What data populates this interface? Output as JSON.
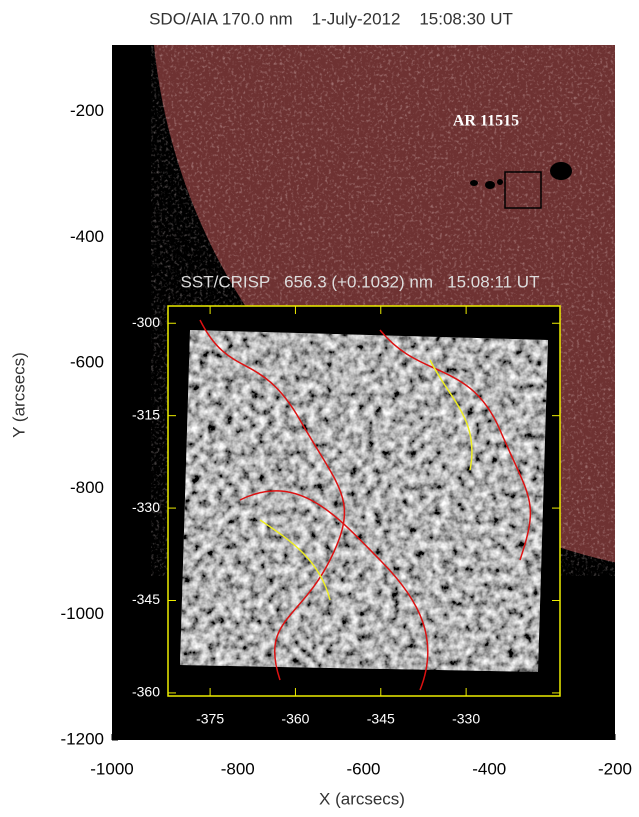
{
  "chart_data": {
    "type": "image",
    "title": "SDO/AIA 170.0 nm    1-July-2012    15:08:30 UT",
    "x_label": "X (arcsecs)",
    "y_label": "Y (arcsecs)",
    "xlim": [
      -1000,
      -200
    ],
    "ylim": [
      -1200,
      -94
    ],
    "xticks": [
      -1000,
      -800,
      -600,
      -400,
      -200
    ],
    "yticks": [
      -1200,
      -1000,
      -800,
      -600,
      -400,
      -200
    ],
    "annotation": "AR 11515",
    "inset": {
      "title": "SST/CRISP   656.3 (+0.1032) nm   15:08:11 UT",
      "xlim": [
        -382.4,
        -313.5
      ],
      "ylim": [
        -360.5,
        -297.2
      ],
      "xticks": [
        -375,
        -360,
        -345,
        -330
      ],
      "yticks": [
        -360,
        -345,
        -330,
        -315,
        -300
      ]
    }
  }
}
